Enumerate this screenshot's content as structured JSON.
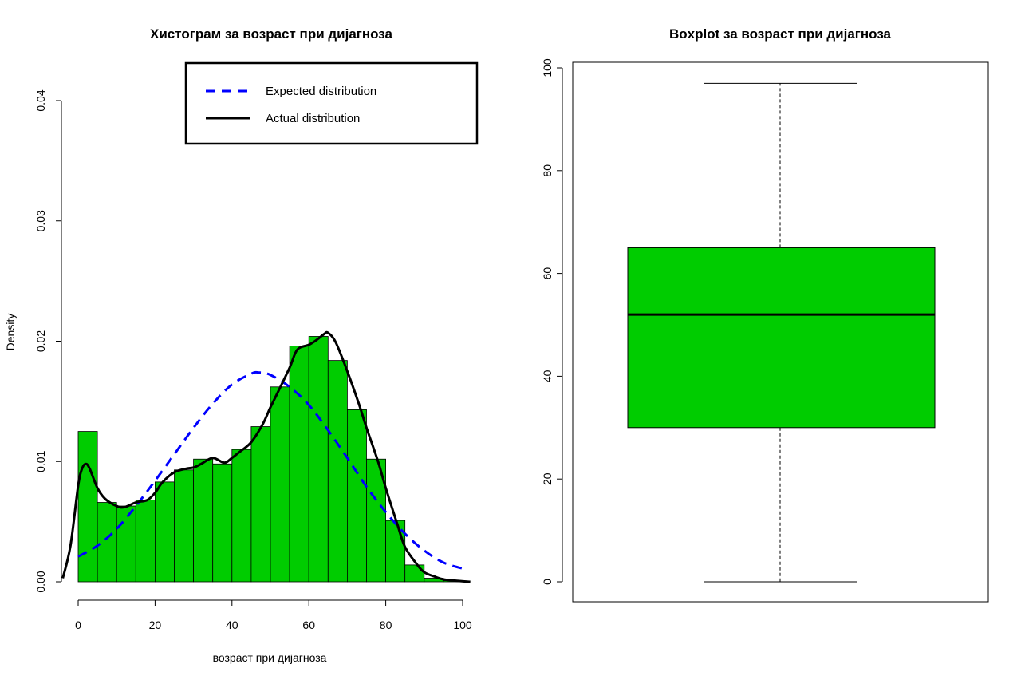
{
  "chart_data": [
    {
      "type": "histogram",
      "title": "Хистограм за  возраст при дијагноза",
      "xlabel": "возраст при дијагноза",
      "ylabel": "Density",
      "xlim": [
        -4,
        102
      ],
      "ylim": [
        0,
        0.04
      ],
      "x_ticks": [
        0,
        20,
        40,
        60,
        80,
        100
      ],
      "y_ticks": [
        0.0,
        0.01,
        0.02,
        0.03,
        0.04
      ],
      "y_tick_labels": [
        "0.00",
        "0.01",
        "0.02",
        "0.03",
        "0.04"
      ],
      "bar_color": "#00cc00",
      "bins": [
        {
          "from": 0,
          "to": 5,
          "density": 0.0125
        },
        {
          "from": 5,
          "to": 10,
          "density": 0.0066
        },
        {
          "from": 10,
          "to": 15,
          "density": 0.0063
        },
        {
          "from": 15,
          "to": 20,
          "density": 0.0068
        },
        {
          "from": 20,
          "to": 25,
          "density": 0.0083
        },
        {
          "from": 25,
          "to": 30,
          "density": 0.0093
        },
        {
          "from": 30,
          "to": 35,
          "density": 0.0102
        },
        {
          "from": 35,
          "to": 40,
          "density": 0.0098
        },
        {
          "from": 40,
          "to": 45,
          "density": 0.011
        },
        {
          "from": 45,
          "to": 50,
          "density": 0.0129
        },
        {
          "from": 50,
          "to": 55,
          "density": 0.0162
        },
        {
          "from": 55,
          "to": 60,
          "density": 0.0196
        },
        {
          "from": 60,
          "to": 65,
          "density": 0.0204
        },
        {
          "from": 65,
          "to": 70,
          "density": 0.0184
        },
        {
          "from": 70,
          "to": 75,
          "density": 0.0143
        },
        {
          "from": 75,
          "to": 80,
          "density": 0.0102
        },
        {
          "from": 80,
          "to": 85,
          "density": 0.0051
        },
        {
          "from": 85,
          "to": 90,
          "density": 0.0014
        },
        {
          "from": 90,
          "to": 95,
          "density": 0.0003
        },
        {
          "from": 95,
          "to": 100,
          "density": 0.0001
        }
      ],
      "series": [
        {
          "name": "Expected distribution",
          "color": "#0000ff",
          "style": "dashed",
          "x": [
            0,
            5,
            10,
            15,
            20,
            25,
            30,
            35,
            40,
            45,
            47,
            50,
            55,
            60,
            65,
            70,
            75,
            80,
            85,
            90,
            95,
            100
          ],
          "y": [
            0.0021,
            0.003,
            0.0044,
            0.0063,
            0.0084,
            0.0106,
            0.0128,
            0.0148,
            0.0164,
            0.0173,
            0.0174,
            0.0172,
            0.0162,
            0.0147,
            0.0126,
            0.0103,
            0.0079,
            0.0058,
            0.004,
            0.0026,
            0.0016,
            0.0011
          ]
        },
        {
          "name": "Actual distribution",
          "color": "#000000",
          "style": "solid",
          "x": [
            -4,
            -2,
            0,
            1,
            2,
            3,
            5,
            7,
            10,
            12,
            15,
            18,
            20,
            22,
            25,
            28,
            30,
            32,
            35,
            38,
            40,
            42,
            45,
            48,
            50,
            52,
            55,
            57,
            60,
            62,
            64,
            65,
            67,
            70,
            73,
            75,
            78,
            80,
            83,
            85,
            88,
            90,
            93,
            95,
            98,
            102
          ],
          "y": [
            0.0003,
            0.003,
            0.008,
            0.0094,
            0.0098,
            0.0094,
            0.0078,
            0.0069,
            0.0063,
            0.0062,
            0.0066,
            0.0068,
            0.0074,
            0.0083,
            0.0091,
            0.0094,
            0.0095,
            0.0098,
            0.0103,
            0.0099,
            0.0103,
            0.0108,
            0.0116,
            0.0131,
            0.0145,
            0.0158,
            0.0178,
            0.0193,
            0.0197,
            0.0201,
            0.0206,
            0.0207,
            0.0199,
            0.0175,
            0.0148,
            0.0128,
            0.01,
            0.0078,
            0.0048,
            0.0029,
            0.0015,
            0.0008,
            0.0004,
            0.0002,
            0.0001,
            0.0
          ]
        }
      ],
      "legend_position": "top-right"
    },
    {
      "type": "boxplot",
      "title": "Boxplot за  возраст при дијагноза",
      "ylim": [
        -4,
        100
      ],
      "y_ticks": [
        0,
        20,
        40,
        60,
        80,
        100
      ],
      "y_tick_labels": [
        "0",
        "20",
        "40",
        "60",
        "80",
        "100"
      ],
      "box_color": "#00cc00",
      "min": 0,
      "q1": 30,
      "median": 52,
      "q3": 65,
      "max": 97
    }
  ]
}
